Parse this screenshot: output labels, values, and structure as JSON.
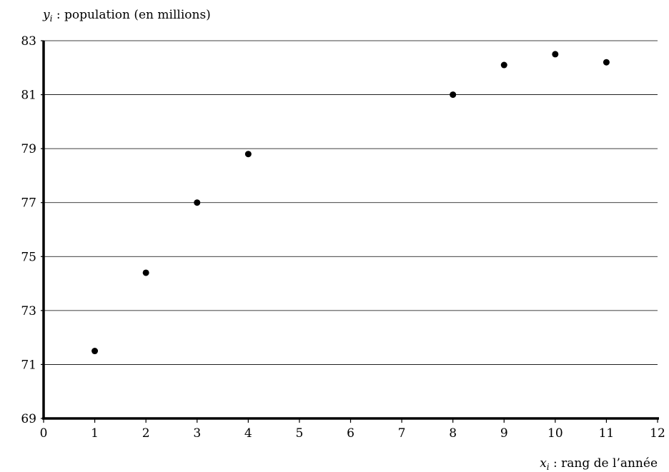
{
  "chart_data": {
    "type": "scatter",
    "xlabel_var": "x",
    "xlabel_sub": "i",
    "xlabel_text": " : rang de l’année",
    "ylabel_var": "y",
    "ylabel_sub": "i",
    "ylabel_text": " : population (en millions)",
    "xlim": [
      0,
      12
    ],
    "ylim": [
      69,
      83
    ],
    "x_ticks": [
      0,
      1,
      2,
      3,
      4,
      5,
      6,
      7,
      8,
      9,
      10,
      11,
      12
    ],
    "y_ticks": [
      69,
      71,
      73,
      75,
      77,
      79,
      81,
      83
    ],
    "grid": "horizontal",
    "points_color": "#000000",
    "series": [
      {
        "x": [
          1,
          2,
          3,
          4,
          8,
          9,
          10,
          11
        ],
        "y": [
          71.5,
          74.4,
          77.0,
          78.8,
          81.0,
          82.1,
          82.5,
          82.2
        ]
      }
    ]
  }
}
